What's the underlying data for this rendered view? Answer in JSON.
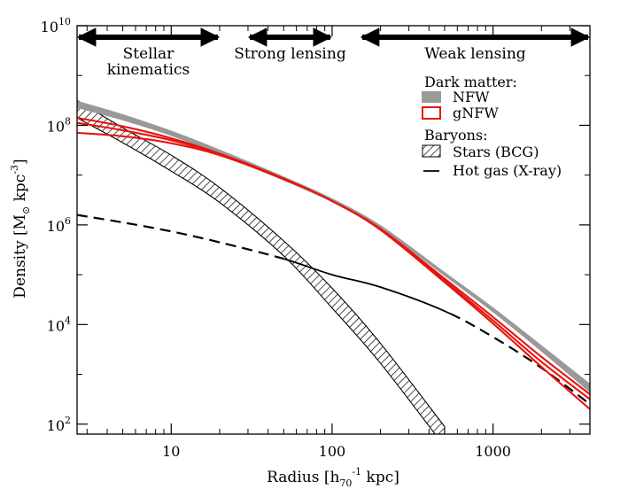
{
  "chart_data": {
    "type": "line",
    "title": "",
    "xlabel": {
      "main": "Radius [h",
      "sub": "70",
      "sup": "-1",
      "tail": " kpc]"
    },
    "ylabel": {
      "main": "Density [M",
      "sub": "⊙",
      "unit": " kpc",
      "sup": "-3",
      "tail": "]"
    },
    "x_scale": "log",
    "y_scale": "log",
    "xlim": [
      2.6,
      4000
    ],
    "ylim_log10": [
      1.8,
      10
    ],
    "x_ticks": [
      {
        "value": 10,
        "label": "10"
      },
      {
        "value": 100,
        "label": "100"
      },
      {
        "value": 1000,
        "label": "1000"
      }
    ],
    "y_ticks": [
      {
        "exp": 2,
        "base": "10",
        "sup": "2"
      },
      {
        "exp": 4,
        "base": "10",
        "sup": "4"
      },
      {
        "exp": 6,
        "base": "10",
        "sup": "6"
      },
      {
        "exp": 8,
        "base": "10",
        "sup": "8"
      },
      {
        "exp": 10,
        "base": "10",
        "sup": "10"
      }
    ],
    "regions": [
      {
        "name": "stellar-kinematics",
        "lines": [
          "Stellar",
          "kinematics"
        ],
        "x_range": [
          2.6,
          20
        ]
      },
      {
        "name": "strong-lensing",
        "lines": [
          "Strong lensing"
        ],
        "x_range": [
          30,
          100
        ]
      },
      {
        "name": "weak-lensing",
        "lines": [
          "Weak lensing"
        ],
        "x_range": [
          150,
          4000
        ]
      }
    ],
    "legend": {
      "position": "top-right",
      "group_dark_matter": "Dark matter:",
      "nfw": "NFW",
      "gnfw": "gNFW",
      "group_baryons": "Baryons:",
      "stars": "Stars (BCG)",
      "gas": "Hot gas (X-ray)"
    },
    "colors": {
      "nfw": "#999999",
      "gnfw": "#e8140e",
      "gas": "#000000",
      "stars": "#000000"
    },
    "series": [
      {
        "name": "NFW",
        "style": "band",
        "x": [
          2.6,
          5,
          10,
          20,
          50,
          100,
          200,
          500,
          1000,
          2000,
          4000
        ],
        "log_y_upper": [
          8.48,
          8.21,
          7.88,
          7.5,
          6.96,
          6.52,
          5.98,
          5.04,
          4.33,
          3.57,
          2.8
        ],
        "log_y_lower": [
          8.36,
          8.11,
          7.8,
          7.43,
          6.9,
          6.47,
          5.93,
          4.99,
          4.26,
          3.47,
          2.65
        ]
      },
      {
        "name": "gNFW",
        "style": "lines",
        "x": [
          2.6,
          5,
          10,
          20,
          50,
          100,
          200,
          500,
          1000,
          2000,
          4000
        ],
        "curves": [
          [
            8.05,
            7.9,
            7.7,
            7.42,
            6.93,
            6.48,
            5.91,
            4.88,
            4.08,
            3.25,
            2.5
          ],
          [
            8.15,
            7.98,
            7.74,
            7.43,
            6.93,
            6.48,
            5.92,
            4.92,
            4.15,
            3.35,
            2.6
          ],
          [
            7.85,
            7.78,
            7.64,
            7.4,
            6.92,
            6.48,
            5.9,
            4.85,
            4.02,
            3.15,
            2.3
          ]
        ]
      },
      {
        "name": "Stars (BCG)",
        "style": "hatched-band",
        "x": [
          2.6,
          5,
          10,
          20,
          50,
          100,
          200,
          500
        ],
        "log_y_upper": [
          8.5,
          7.95,
          7.4,
          6.75,
          5.68,
          4.73,
          3.62,
          1.95
        ],
        "log_y_lower": [
          8.15,
          7.65,
          7.08,
          6.45,
          5.38,
          4.33,
          3.22,
          1.55
        ]
      },
      {
        "name": "Hot gas (X-ray)",
        "style": "line",
        "solid_range": [
          50,
          550
        ],
        "x": [
          2.6,
          5,
          10,
          20,
          50,
          100,
          200,
          500,
          1000,
          2000,
          4000
        ],
        "log_y": [
          6.2,
          6.05,
          5.87,
          5.65,
          5.32,
          5.0,
          4.75,
          4.27,
          3.75,
          3.13,
          2.4
        ]
      }
    ]
  }
}
